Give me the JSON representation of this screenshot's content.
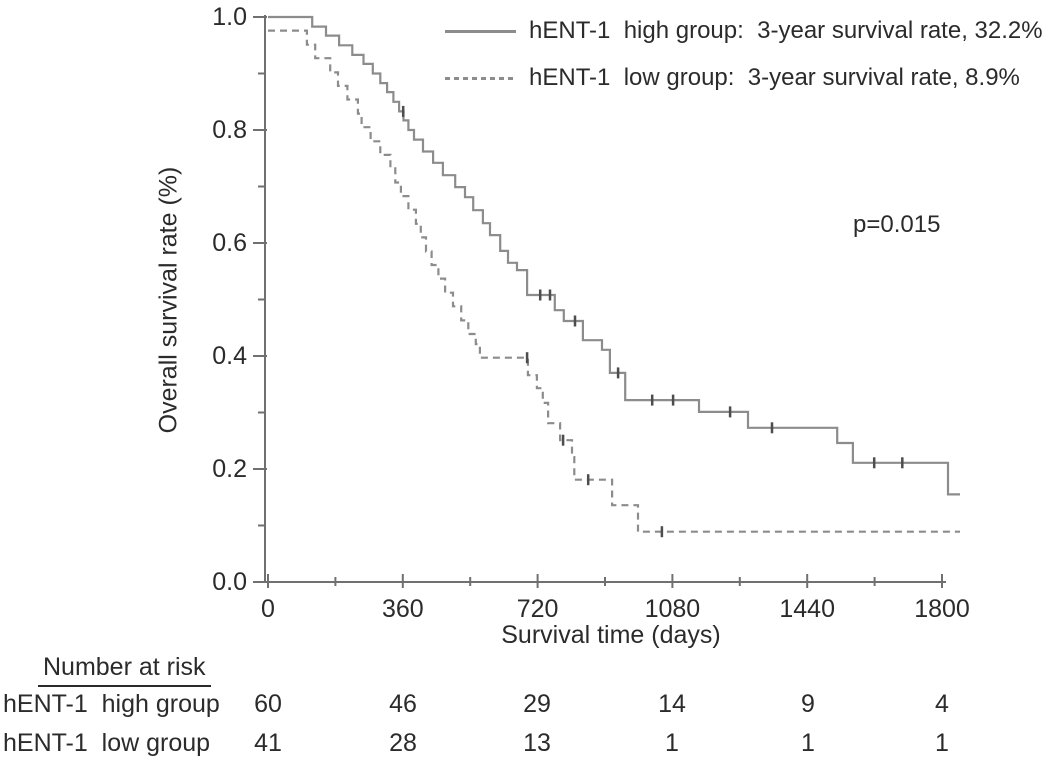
{
  "chart_data": {
    "type": "line",
    "subtype": "kaplan-meier-step",
    "title": "",
    "xlabel": "Survival time (days)",
    "ylabel": "Overall survival rate (%)",
    "xlim": [
      0,
      1860
    ],
    "ylim": [
      0.0,
      1.0
    ],
    "grid": false,
    "legend_position": "top-right",
    "x_ticks": [
      0,
      360,
      720,
      1080,
      1440,
      1800
    ],
    "x_minor_ticks": [
      180,
      540,
      900,
      1260,
      1620
    ],
    "y_tick_labels": [
      "1.0",
      "0.8",
      "0.6",
      "0.4",
      "0.2",
      "0.0"
    ],
    "y_tick_values": [
      1.0,
      0.8,
      0.6,
      0.4,
      0.2,
      0.0
    ],
    "y_minor_ticks": [
      0.9,
      0.7,
      0.5,
      0.3,
      0.1
    ],
    "p_value_label": "p=0.015",
    "series": [
      {
        "name": "hENT-1 high group",
        "legend_label": "hENT-1  high group:  3-year survival rate, 32.2%",
        "line_style": "solid",
        "three_year_survival_rate_pct": 32.2,
        "steps": [
          [
            0,
            1.0
          ],
          [
            118,
            0.983
          ],
          [
            155,
            0.967
          ],
          [
            190,
            0.95
          ],
          [
            225,
            0.933
          ],
          [
            255,
            0.917
          ],
          [
            280,
            0.9
          ],
          [
            300,
            0.883
          ],
          [
            318,
            0.867
          ],
          [
            335,
            0.85
          ],
          [
            350,
            0.833
          ],
          [
            362,
            0.817
          ],
          [
            375,
            0.8
          ],
          [
            390,
            0.783
          ],
          [
            414,
            0.762
          ],
          [
            441,
            0.742
          ],
          [
            467,
            0.72
          ],
          [
            500,
            0.699
          ],
          [
            526,
            0.681
          ],
          [
            548,
            0.658
          ],
          [
            574,
            0.635
          ],
          [
            593,
            0.614
          ],
          [
            620,
            0.586
          ],
          [
            641,
            0.565
          ],
          [
            665,
            0.552
          ],
          [
            692,
            0.508
          ],
          [
            766,
            0.481
          ],
          [
            790,
            0.462
          ],
          [
            841,
            0.428
          ],
          [
            892,
            0.411
          ],
          [
            913,
            0.37
          ],
          [
            954,
            0.322
          ],
          [
            1151,
            0.301
          ],
          [
            1282,
            0.273
          ],
          [
            1520,
            0.246
          ],
          [
            1562,
            0.211
          ],
          [
            1816,
            0.155
          ]
        ],
        "end_day": 1848,
        "censor_marks": [
          [
            361,
            0.833
          ],
          [
            727,
            0.508
          ],
          [
            753,
            0.508
          ],
          [
            820,
            0.462
          ],
          [
            935,
            0.37
          ],
          [
            1026,
            0.322
          ],
          [
            1082,
            0.322
          ],
          [
            1234,
            0.301
          ],
          [
            1346,
            0.273
          ],
          [
            1619,
            0.211
          ],
          [
            1694,
            0.211
          ]
        ]
      },
      {
        "name": "hENT-1 low group",
        "legend_label": "hENT-1  low group:  3-year survival rate, 8.9%",
        "line_style": "dashed",
        "three_year_survival_rate_pct": 8.9,
        "steps": [
          [
            0,
            0.976
          ],
          [
            104,
            0.951
          ],
          [
            126,
            0.927
          ],
          [
            166,
            0.902
          ],
          [
            187,
            0.878
          ],
          [
            212,
            0.854
          ],
          [
            240,
            0.829
          ],
          [
            250,
            0.805
          ],
          [
            274,
            0.78
          ],
          [
            300,
            0.756
          ],
          [
            327,
            0.732
          ],
          [
            340,
            0.707
          ],
          [
            355,
            0.683
          ],
          [
            375,
            0.659
          ],
          [
            395,
            0.634
          ],
          [
            408,
            0.61
          ],
          [
            422,
            0.585
          ],
          [
            437,
            0.561
          ],
          [
            455,
            0.537
          ],
          [
            473,
            0.512
          ],
          [
            494,
            0.488
          ],
          [
            516,
            0.463
          ],
          [
            535,
            0.439
          ],
          [
            555,
            0.421
          ],
          [
            566,
            0.397
          ],
          [
            694,
            0.366
          ],
          [
            718,
            0.343
          ],
          [
            734,
            0.317
          ],
          [
            748,
            0.281
          ],
          [
            780,
            0.251
          ],
          [
            812,
            0.221
          ],
          [
            818,
            0.181
          ],
          [
            919,
            0.136
          ],
          [
            988,
            0.089
          ]
        ],
        "end_day": 1848,
        "censor_marks": [
          [
            692,
            0.397
          ],
          [
            788,
            0.251
          ],
          [
            855,
            0.181
          ],
          [
            1052,
            0.089
          ]
        ]
      }
    ]
  },
  "risk_table": {
    "header": "Number at risk",
    "time_points": [
      0,
      360,
      720,
      1080,
      1440,
      1800
    ],
    "rows": [
      {
        "label": "hENT-1  high group",
        "counts": [
          "60",
          "46",
          "29",
          "14",
          "9",
          "4"
        ]
      },
      {
        "label": "hENT-1  low group",
        "counts": [
          "41",
          "28",
          "13",
          "1",
          "1",
          "1"
        ]
      }
    ]
  },
  "colors": {
    "curve": "#8c8c8c",
    "censor": "#4d4d4d",
    "axis": "#707070",
    "text": "#2b2b2b"
  }
}
